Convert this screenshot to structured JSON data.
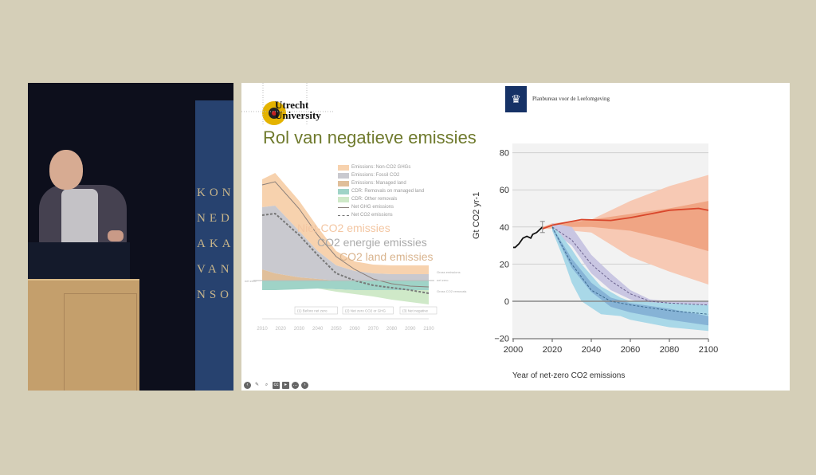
{
  "video": {
    "banner_letters": [
      "KON",
      "NED",
      "AKA",
      "VAN",
      "NSO"
    ]
  },
  "slide": {
    "logo_left": {
      "line1": "Utrecht",
      "line2": "University"
    },
    "title": "Rol van negatieve emissies",
    "logo_right": {
      "text": "Planbureau voor de Leefomgeving",
      "emblem": "crest-icon"
    },
    "overlays": {
      "non_co2": "Niet-CO2 emissies",
      "energy": "CO2 energie emissies",
      "land": "CO2 land emissies"
    },
    "toolbar": [
      "back-icon",
      "pen-icon",
      "zoom-icon",
      "captions-icon",
      "camera-icon",
      "more-icon",
      "forward-icon"
    ]
  },
  "chart_data": [
    {
      "type": "area",
      "title": "",
      "xlabel": "",
      "ylabel": "",
      "xlim": [
        2010,
        2100
      ],
      "x_ticks": [
        "2010",
        "2020",
        "2030",
        "2040",
        "2050",
        "2060",
        "2070",
        "2080",
        "2090",
        "2100"
      ],
      "net_zero_label": "net zero",
      "right_labels": [
        "Gross emissions",
        "net zero",
        "Gross CO2 removals"
      ],
      "phase_boxes": [
        "(1) Before net zero",
        "(2) Net zero CO2 or GHG",
        "(3) Net negative"
      ],
      "legend": [
        {
          "label": "Emissions: Non-CO2 GHGs",
          "color": "#f7d2ae"
        },
        {
          "label": "Emissions: Fossil CO2",
          "color": "#c9c9cf"
        },
        {
          "label": "Emissions: Managed land",
          "color": "#e0bf9a"
        },
        {
          "label": "CDR: Removals on managed land",
          "color": "#9fd3c7"
        },
        {
          "label": "CDR: Other removals",
          "color": "#cfe9c8"
        },
        {
          "label": "Net GHG emissions",
          "color": "#8a7f7a"
        },
        {
          "label": "Net CO2 emissions",
          "color": "#777"
        }
      ],
      "x": [
        2010,
        2017,
        2030,
        2040,
        2050,
        2060,
        2070,
        2080,
        2090,
        2100
      ],
      "layers": [
        {
          "name": "non-co2",
          "color": "#f7d2ae",
          "upper": [
            127,
            135,
            100,
            67,
            37,
            24,
            20,
            19,
            19,
            19
          ],
          "lower": [
            92,
            94,
            62,
            37,
            19,
            12,
            9,
            8,
            8,
            8
          ]
        },
        {
          "name": "fossil",
          "color": "#c9c9cf",
          "upper": [
            92,
            94,
            62,
            37,
            19,
            12,
            9,
            8,
            8,
            8
          ],
          "lower": [
            14,
            9,
            4,
            2,
            0,
            0,
            0,
            0,
            0,
            0
          ]
        },
        {
          "name": "land",
          "color": "#e0bf9a",
          "upper": [
            14,
            9,
            4,
            2,
            0,
            0,
            0,
            0,
            0,
            0
          ],
          "lower": [
            0,
            0,
            0,
            0,
            0,
            0,
            0,
            0,
            0,
            0
          ]
        },
        {
          "name": "cdr-land",
          "color": "#9fd3c7",
          "upper": [
            0,
            0,
            0,
            0,
            0,
            0,
            0,
            0,
            0,
            0
          ],
          "lower": [
            -12,
            -12,
            -11,
            -10,
            -11,
            -12,
            -12,
            -12,
            -12,
            -12
          ]
        },
        {
          "name": "cdr-other",
          "color": "#cfe9c8",
          "upper": [
            -12,
            -12,
            -11,
            -10,
            -11,
            -12,
            -12,
            -12,
            -12,
            -12
          ],
          "lower": [
            -12,
            -12,
            -11,
            -10,
            -14,
            -17,
            -20,
            -24,
            -27,
            -30
          ]
        }
      ],
      "lines": [
        {
          "name": "net-ghg",
          "dash": false,
          "color": "#8a7f7a",
          "values": [
            120,
            124,
            90,
            57,
            30,
            14,
            2,
            -4,
            -7,
            -8
          ]
        },
        {
          "name": "net-co2",
          "dash": true,
          "color": "#777",
          "values": [
            82,
            84,
            57,
            32,
            9,
            0,
            -6,
            -9,
            -12,
            -16
          ]
        }
      ]
    },
    {
      "type": "line",
      "xlabel": "Year of net-zero CO2 emissions",
      "ylabel": "Gt CO2 yr-1",
      "xlim": [
        2000,
        2100
      ],
      "ylim": [
        -20,
        80
      ],
      "x_ticks": [
        2000,
        2020,
        2040,
        2060,
        2080,
        2100
      ],
      "y_ticks": [
        80,
        60,
        40,
        20,
        0,
        -20
      ],
      "historical": {
        "x": [
          2000,
          2001,
          2003,
          2005,
          2007,
          2009,
          2010,
          2012,
          2015
        ],
        "y": [
          29,
          29,
          31,
          34,
          35,
          34,
          36,
          37,
          40
        ],
        "error_bar": [
          2015,
          37,
          43
        ]
      },
      "bands": [
        {
          "name": "red-outer",
          "color": "#f7c9b4",
          "x": [
            2015,
            2020,
            2040,
            2060,
            2080,
            2100
          ],
          "upper": [
            40,
            42,
            44,
            54,
            62,
            68
          ],
          "lower": [
            39,
            39,
            37,
            24,
            16,
            9
          ]
        },
        {
          "name": "red-inner",
          "color": "#f0a584",
          "x": [
            2015,
            2020,
            2040,
            2060,
            2080,
            2100
          ],
          "upper": [
            40,
            41,
            44,
            47,
            50,
            54
          ],
          "lower": [
            39,
            40,
            40,
            38,
            33,
            27
          ]
        },
        {
          "name": "purple",
          "color": "#c9c6e2",
          "x": [
            2020,
            2030,
            2040,
            2050,
            2060,
            2070,
            2080,
            2100
          ],
          "upper": [
            42,
            40,
            25,
            15,
            6,
            1,
            0,
            0
          ],
          "lower": [
            38,
            30,
            15,
            6,
            1,
            -2,
            -3,
            -4
          ]
        },
        {
          "name": "blue-outer",
          "color": "#a9d8e8",
          "x": [
            2020,
            2025,
            2030,
            2035,
            2045,
            2055,
            2060,
            2080,
            2100
          ],
          "upper": [
            41,
            35,
            28,
            20,
            8,
            2,
            0,
            -1,
            -2
          ],
          "lower": [
            38,
            25,
            10,
            0,
            -7,
            -8,
            -10,
            -14,
            -16
          ]
        },
        {
          "name": "blue-inner",
          "color": "#86b3d6",
          "x": [
            2020,
            2030,
            2040,
            2050,
            2060,
            2080,
            2100
          ],
          "upper": [
            40,
            23,
            10,
            2,
            -1,
            -4,
            -8
          ],
          "lower": [
            39,
            18,
            5,
            -3,
            -6,
            -10,
            -13
          ]
        }
      ],
      "lines": [
        {
          "name": "red-median",
          "color": "#d9462b",
          "dash": false,
          "x": [
            2015,
            2020,
            2025,
            2035,
            2050,
            2060,
            2070,
            2080,
            2095,
            2100
          ],
          "y": [
            39,
            41,
            42,
            44,
            43.5,
            45,
            47,
            49,
            50,
            49
          ]
        },
        {
          "name": "purple-median",
          "color": "#6b628f",
          "dash": true,
          "x": [
            2020,
            2030,
            2040,
            2050,
            2060,
            2070,
            2080,
            2100
          ],
          "y": [
            40,
            33,
            20,
            11,
            4,
            0,
            -1,
            -2
          ]
        },
        {
          "name": "blue-median",
          "color": "#3c6a8f",
          "dash": true,
          "x": [
            2020,
            2030,
            2040,
            2050,
            2060,
            2080,
            2100
          ],
          "y": [
            40,
            20,
            6,
            0,
            -2,
            -5,
            -7
          ]
        }
      ]
    }
  ]
}
